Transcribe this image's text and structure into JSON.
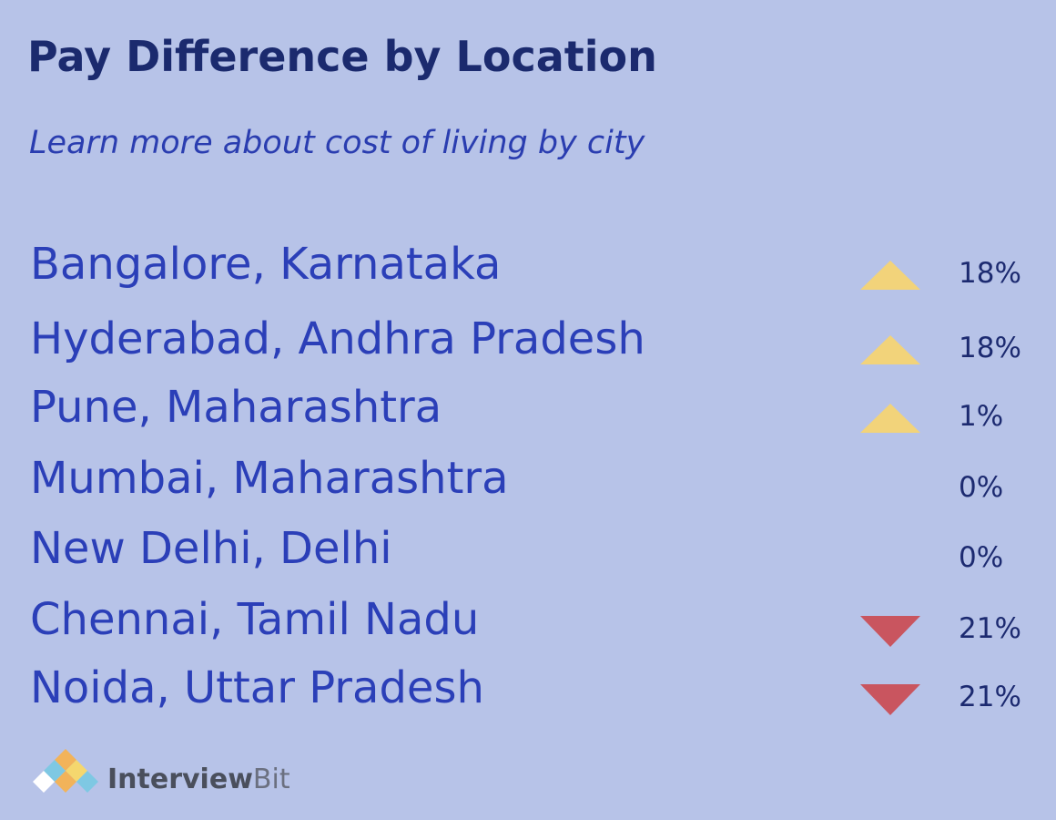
{
  "title": "Pay Difference by Location",
  "subtitle": "Learn more about cost of living by city",
  "rows": [
    {
      "city": "Bangalore, Karnataka",
      "change": "18%",
      "direction": "up"
    },
    {
      "city": "Hyderabad, Andhra Pradesh",
      "change": "18%",
      "direction": "up"
    },
    {
      "city": "Pune, Maharashtra",
      "change": "1%",
      "direction": "up"
    },
    {
      "city": "Mumbai, Maharashtra",
      "change": "0%",
      "direction": "none"
    },
    {
      "city": "New Delhi, Delhi",
      "change": "0%",
      "direction": "none"
    },
    {
      "city": "Chennai, Tamil Nadu",
      "change": "21%",
      "direction": "down"
    },
    {
      "city": "Noida, Uttar Pradesh",
      "change": "21%",
      "direction": "down"
    }
  ],
  "logo": [
    "Interview",
    "Bit"
  ]
}
